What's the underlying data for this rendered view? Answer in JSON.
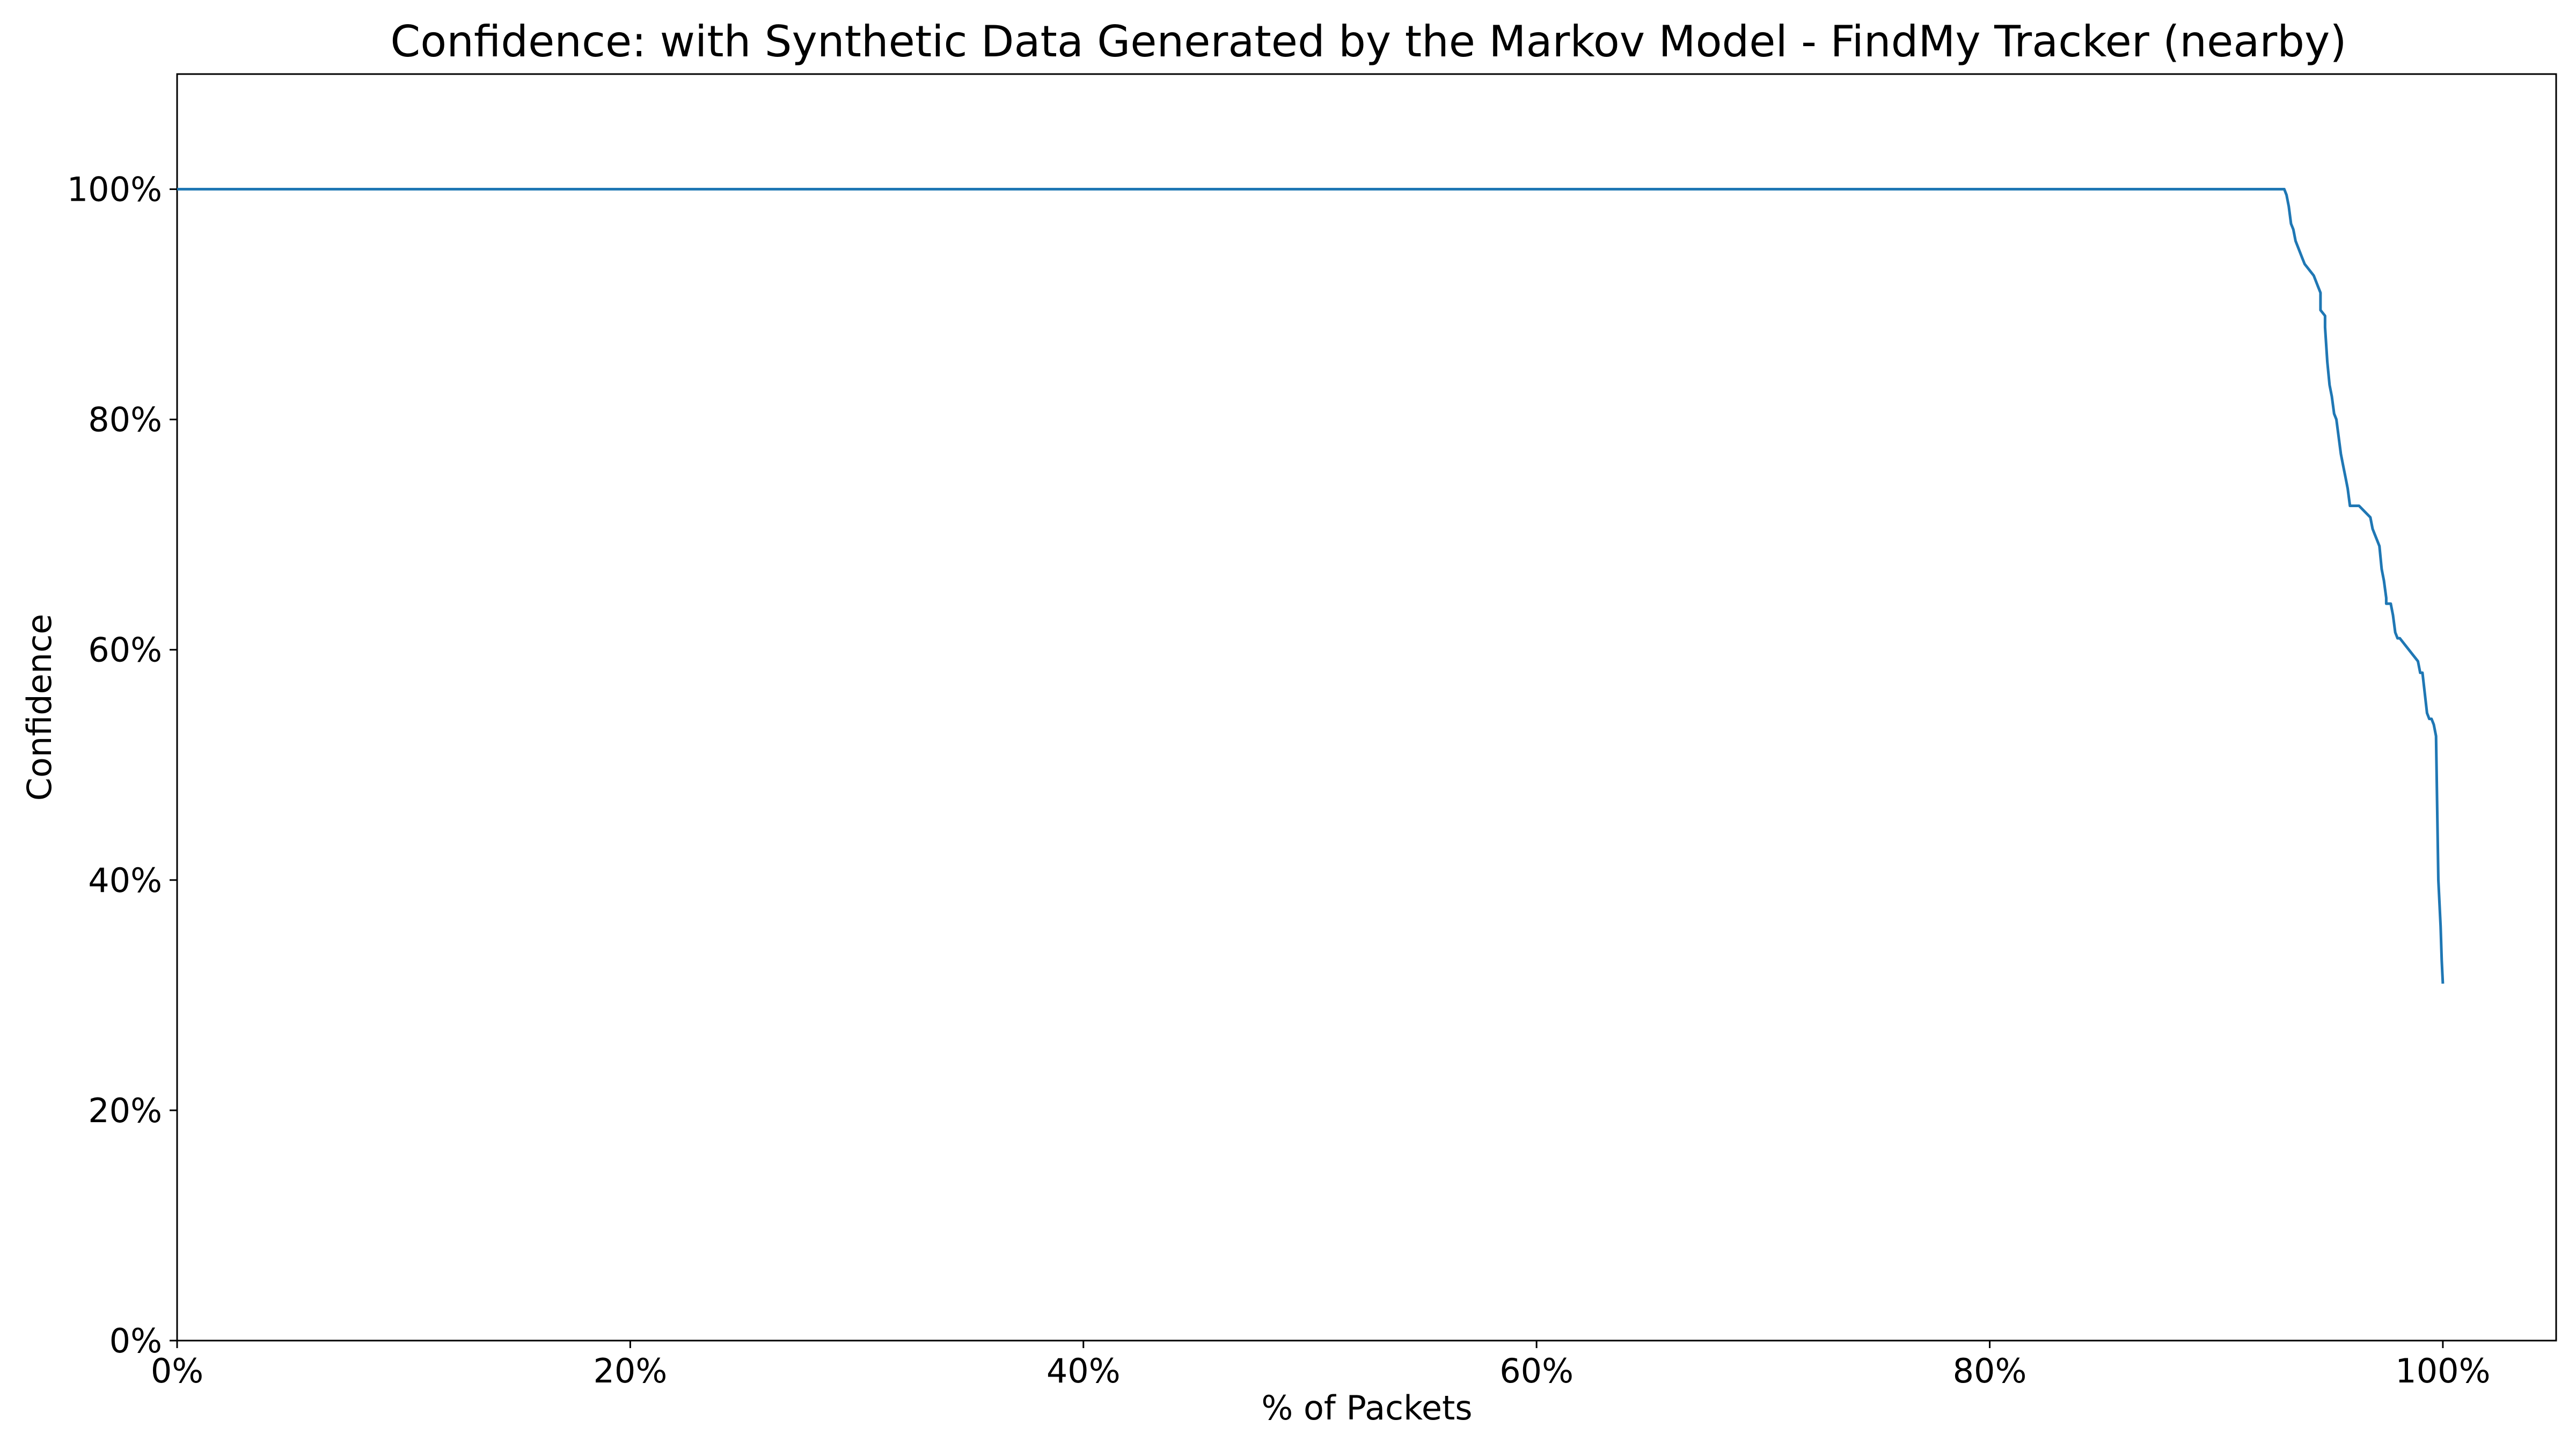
{
  "chart_data": {
    "type": "line",
    "title": "Confidence: with Synthetic Data Generated by the Markov Model - FindMy Tracker (nearby)",
    "xlabel": "% of Packets",
    "ylabel": "Confidence",
    "xlim": [
      0,
      105
    ],
    "ylim": [
      0,
      110
    ],
    "grid": false,
    "x_ticks": [
      {
        "value": 0,
        "label": "0%"
      },
      {
        "value": 20,
        "label": "20%"
      },
      {
        "value": 40,
        "label": "40%"
      },
      {
        "value": 60,
        "label": "60%"
      },
      {
        "value": 80,
        "label": "80%"
      },
      {
        "value": 100,
        "label": "100%"
      }
    ],
    "y_ticks": [
      {
        "value": 0,
        "label": "0%"
      },
      {
        "value": 20,
        "label": "20%"
      },
      {
        "value": 40,
        "label": "40%"
      },
      {
        "value": 60,
        "label": "60%"
      },
      {
        "value": 80,
        "label": "80%"
      },
      {
        "value": 100,
        "label": "100%"
      }
    ],
    "series": [
      {
        "name": "Confidence",
        "color": "#1f77b4",
        "x": [
          0,
          93.0,
          93.1,
          93.2,
          93.3,
          93.4,
          93.5,
          93.6,
          93.8,
          93.9,
          94.1,
          94.3,
          94.5,
          94.6,
          94.6,
          94.8,
          94.8,
          94.9,
          95.0,
          95.1,
          95.2,
          95.3,
          95.4,
          95.5,
          95.6,
          95.7,
          95.8,
          95.9,
          96.0,
          96.1,
          96.2,
          96.3,
          96.8,
          96.9,
          97.0,
          97.1,
          97.2,
          97.3,
          97.4,
          97.5,
          97.5,
          97.6,
          97.7,
          97.8,
          97.9,
          98.0,
          98.1,
          98.9,
          99.0,
          99.1,
          99.3,
          99.4,
          99.5,
          99.6,
          99.7,
          99.8,
          99.9,
          99.95,
          100.0
        ],
        "y": [
          100,
          100,
          99.5,
          98.5,
          97.0,
          96.5,
          95.5,
          95.0,
          94.0,
          93.5,
          93.0,
          92.5,
          91.5,
          91.0,
          89.5,
          89.0,
          88.0,
          85.0,
          83.0,
          82.0,
          80.5,
          80.0,
          78.5,
          77.0,
          76.0,
          75.0,
          74.0,
          72.5,
          72.5,
          72.5,
          72.5,
          72.5,
          71.5,
          70.5,
          70.0,
          69.5,
          69.0,
          67.0,
          66.0,
          64.5,
          64.0,
          64.0,
          64.0,
          63.0,
          61.5,
          61.0,
          61.0,
          59.0,
          58.0,
          58.0,
          54.5,
          54.0,
          54.0,
          53.5,
          52.5,
          40.0,
          36.0,
          33.0,
          31.0
        ]
      }
    ]
  }
}
